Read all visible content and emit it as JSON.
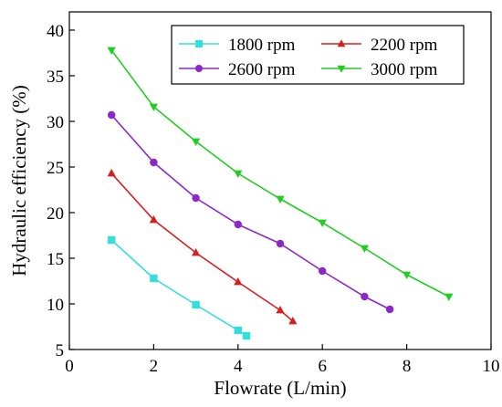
{
  "chart_data": {
    "type": "line",
    "title": "",
    "xlabel": "Flowrate (L/min)",
    "ylabel": "Hydraulic efficiency (%)",
    "xlim": [
      0,
      10
    ],
    "ylim": [
      5,
      42
    ],
    "xticks": [
      0,
      2,
      4,
      6,
      8,
      10
    ],
    "yticks": [
      5,
      10,
      15,
      20,
      25,
      30,
      35,
      40
    ],
    "grid": false,
    "legend_position": "top-right",
    "series": [
      {
        "name": "1800 rpm",
        "color": "#33dede",
        "marker": "square",
        "x": [
          1,
          2,
          3,
          4,
          4.2
        ],
        "y": [
          17.0,
          12.8,
          9.9,
          7.1,
          6.5
        ]
      },
      {
        "name": "2200 rpm",
        "color": "#d62020",
        "marker": "triangle-up",
        "x": [
          1,
          2,
          3,
          4,
          5,
          5.3
        ],
        "y": [
          24.3,
          19.2,
          15.6,
          12.4,
          9.3,
          8.1
        ]
      },
      {
        "name": "2600 rpm",
        "color": "#8c28c8",
        "marker": "circle",
        "x": [
          1,
          2,
          3,
          4,
          5,
          6,
          7,
          7.6
        ],
        "y": [
          30.7,
          25.5,
          21.6,
          18.7,
          16.6,
          13.6,
          10.8,
          9.4
        ]
      },
      {
        "name": "3000 rpm",
        "color": "#22cc22",
        "marker": "triangle-down",
        "x": [
          1,
          2,
          3,
          4,
          5,
          6,
          7,
          8,
          9
        ],
        "y": [
          37.8,
          31.6,
          27.8,
          24.3,
          21.5,
          18.9,
          16.1,
          13.2,
          10.8
        ]
      }
    ]
  }
}
